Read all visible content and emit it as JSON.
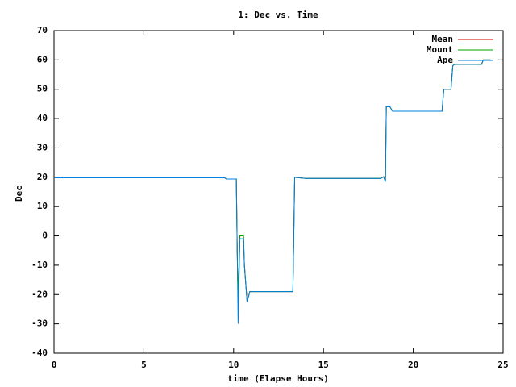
{
  "chart_data": {
    "type": "line",
    "title": "1: Dec vs. Time",
    "x_label": "time (Elapse Hours)",
    "y_label": "Dec",
    "x": [
      0,
      3.2,
      9.5,
      9.6,
      10.15,
      10.2,
      10.25,
      10.35,
      10.55,
      10.6,
      10.75,
      10.9,
      13.3,
      13.4,
      14,
      18.2,
      18.35,
      18.45,
      18.5,
      18.7,
      18.85,
      21.6,
      21.7,
      22.1,
      22.2,
      22.3,
      23.8,
      23.9,
      24.3
    ],
    "series": [
      {
        "name": "Mean",
        "color": "#d00000",
        "values": [
          19.8,
          19.8,
          19.8,
          19.4,
          19.4,
          -5,
          -22,
          0,
          0,
          -10,
          -22.5,
          -19,
          -19,
          20,
          19.6,
          19.6,
          20.2,
          18.5,
          44,
          44,
          42.5,
          42.5,
          50,
          50,
          58,
          58.5,
          58.5,
          60,
          60
        ]
      },
      {
        "name": "Mount",
        "color": "#00a000",
        "values": [
          null,
          19.8,
          19.8,
          19.4,
          19.4,
          -5,
          -22,
          0,
          0,
          -10,
          -22.5,
          -19,
          -19,
          20,
          19.6,
          19.6,
          20.2,
          18.5,
          44,
          44,
          42.5,
          42.5,
          50,
          50,
          58,
          58.5,
          58.5,
          60,
          60
        ]
      },
      {
        "name": "Ape",
        "color": "#0080e0",
        "values": [
          19.8,
          19.8,
          19.8,
          19.4,
          19.4,
          -5,
          -30,
          -1,
          -1,
          -10,
          -22.5,
          -19,
          -19,
          20,
          19.6,
          19.6,
          20.2,
          18.5,
          44,
          44,
          42.5,
          42.5,
          50,
          50,
          58,
          58.5,
          58.5,
          60,
          60
        ]
      }
    ],
    "xlim": [
      0,
      25
    ],
    "xticks": [
      0,
      5,
      10,
      15,
      20,
      25
    ],
    "ylim": [
      -40,
      70
    ],
    "yticks": [
      -40,
      -30,
      -20,
      -10,
      0,
      10,
      20,
      30,
      40,
      50,
      60,
      70
    ],
    "grid": false,
    "legend": "top-right"
  }
}
